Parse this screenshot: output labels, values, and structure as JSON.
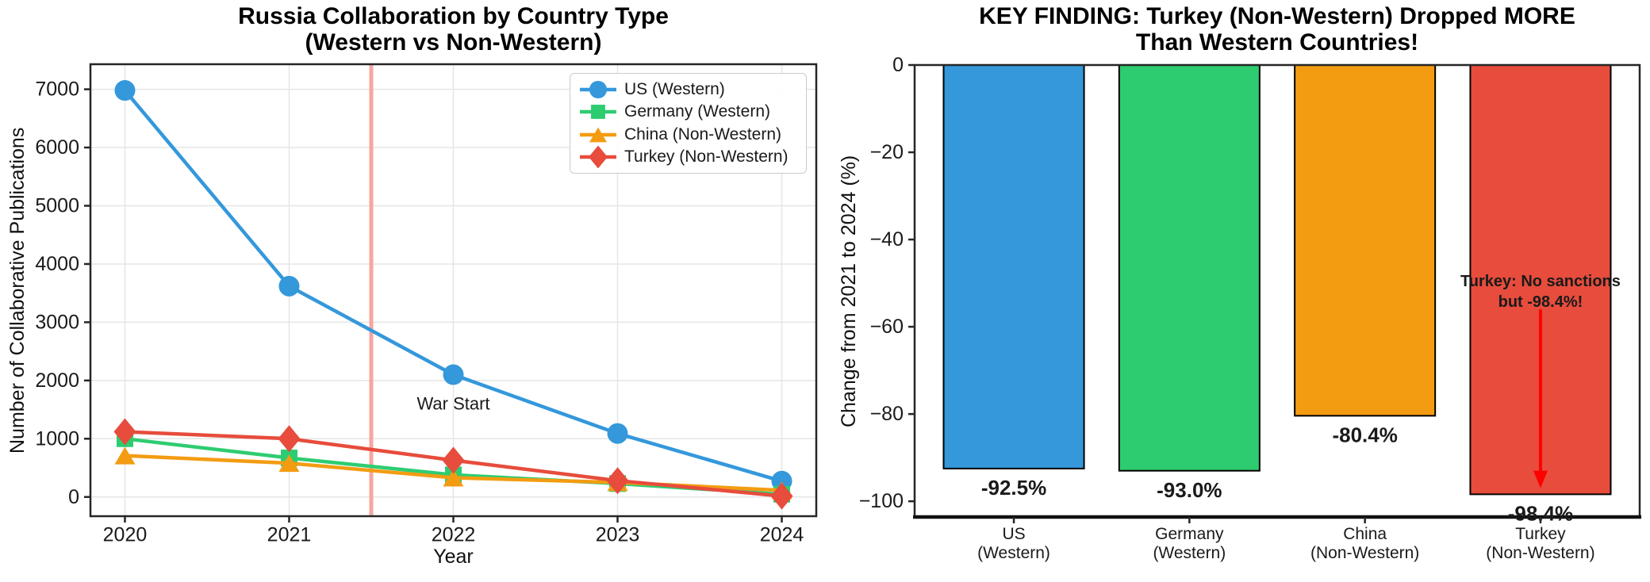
{
  "chart_data": [
    {
      "type": "line",
      "title": "Russia Collaboration by Country Type\n(Western vs Non-Western)",
      "xlabel": "Year",
      "ylabel": "Number of Collaborative Publications",
      "x": [
        2020,
        2021,
        2022,
        2023,
        2024
      ],
      "xticks": [
        2020,
        2021,
        2022,
        2023,
        2024
      ],
      "yticks": [
        0,
        1000,
        2000,
        3000,
        4000,
        5000,
        6000,
        7000
      ],
      "xlim": [
        2019.79,
        2024.21
      ],
      "ylim": [
        -330,
        7430
      ],
      "grid": true,
      "legend_position": "upper right",
      "series": [
        {
          "name": "US (Western)",
          "marker": "circle",
          "color": "#3498db",
          "values": [
            6980,
            3620,
            2100,
            1090,
            272
          ]
        },
        {
          "name": "Germany (Western)",
          "marker": "square",
          "color": "#2ecc71",
          "values": [
            1000,
            670,
            380,
            230,
            47
          ]
        },
        {
          "name": "China (Non-Western)",
          "marker": "triangle",
          "color": "#f39c12",
          "values": [
            710,
            580,
            330,
            250,
            114
          ]
        },
        {
          "name": "Turkey (Non-Western)",
          "marker": "diamond",
          "color": "#e74c3c",
          "values": [
            1120,
            1000,
            630,
            280,
            16
          ]
        }
      ],
      "annotations": {
        "event_line": {
          "x": 2021.5,
          "color": "#f7a6a1",
          "width": 5
        },
        "event_label": {
          "text": "War Start",
          "x": 2022,
          "y": 1600,
          "color": "#ff0000"
        }
      }
    },
    {
      "type": "bar",
      "title": "KEY FINDING: Turkey (Non-Western) Dropped MORE\nThan Western Countries!",
      "ylabel": "Change from 2021 to 2024 (%)",
      "categories": [
        "US\n(Western)",
        "Germany\n(Western)",
        "China\n(Non-Western)",
        "Turkey\n(Non-Western)"
      ],
      "values": [
        -92.5,
        -93,
        -80.4,
        -98.4
      ],
      "bar_labels": [
        "-92.5%",
        "-93.0%",
        "-80.4%",
        "-98.4%"
      ],
      "colors": [
        "#3498db",
        "#2ecc71",
        "#f39c12",
        "#e74c3c"
      ],
      "bar_edge_color": "#000000",
      "yticks": [
        0,
        -20,
        -40,
        -60,
        -80,
        -100
      ],
      "ylim": [
        -103.6,
        0
      ],
      "grid": false,
      "annotation": {
        "text": "Turkey: No sanctions\nbut -98.4%!",
        "color": "#ff0000",
        "category_index": 3,
        "text_y": -52,
        "arrow_from_y": -56,
        "arrow_to_y": -97
      }
    }
  ]
}
